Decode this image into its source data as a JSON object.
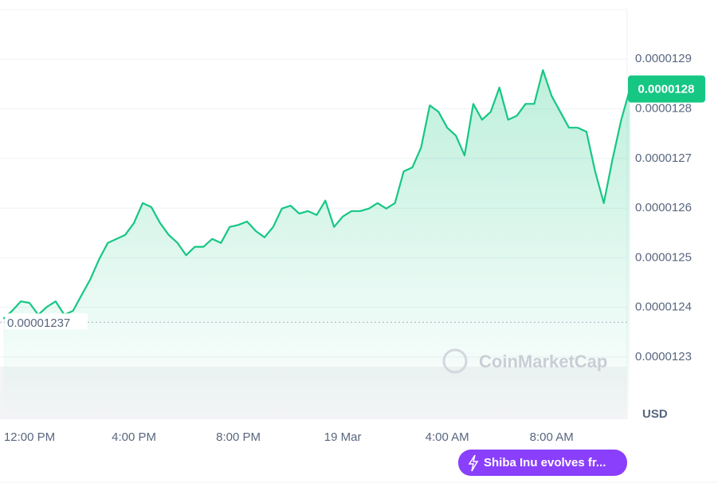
{
  "chart_data": {
    "type": "line",
    "color": "#16c784",
    "categories": [
      null,
      null,
      null,
      "12:00 PM",
      null,
      null,
      null,
      null,
      null,
      null,
      null,
      null,
      null,
      null,
      null,
      "4:00 PM",
      null,
      null,
      null,
      null,
      null,
      null,
      null,
      null,
      null,
      null,
      null,
      "8:00 PM",
      null,
      null,
      null,
      null,
      null,
      null,
      null,
      null,
      null,
      null,
      null,
      "19 Mar",
      null,
      null,
      null,
      null,
      null,
      null,
      null,
      null,
      null,
      null,
      null,
      "4:00 AM",
      null,
      null,
      null,
      null,
      null,
      null,
      null,
      null,
      null,
      null,
      null,
      "8:00 AM",
      null,
      null,
      null,
      null,
      null,
      null,
      null,
      null,
      null
    ],
    "values": [
      1.2377e-05,
      1.2393e-05,
      1.2412e-05,
      1.2409e-05,
      1.2385e-05,
      1.2401e-05,
      1.2412e-05,
      1.2385e-05,
      1.2393e-05,
      1.2425e-05,
      1.2457e-05,
      1.2497e-05,
      1.253e-05,
      1.2538e-05,
      1.2546e-05,
      1.257e-05,
      1.261e-05,
      1.2602e-05,
      1.257e-05,
      1.2546e-05,
      1.253e-05,
      1.2505e-05,
      1.2522e-05,
      1.2522e-05,
      1.2538e-05,
      1.253e-05,
      1.2562e-05,
      1.2566e-05,
      1.2573e-05,
      1.2554e-05,
      1.2541e-05,
      1.2562e-05,
      1.2599e-05,
      1.2605e-05,
      1.2589e-05,
      1.2594e-05,
      1.2586e-05,
      1.2615e-05,
      1.2562e-05,
      1.2583e-05,
      1.2594e-05,
      1.2594e-05,
      1.2599e-05,
      1.261e-05,
      1.2599e-05,
      1.261e-05,
      1.2674e-05,
      1.2682e-05,
      1.2722e-05,
      1.2807e-05,
      1.2794e-05,
      1.2762e-05,
      1.2746e-05,
      1.2706e-05,
      1.281e-05,
      1.2778e-05,
      1.2794e-05,
      1.2843e-05,
      1.2778e-05,
      1.2786e-05,
      1.281e-05,
      1.281e-05,
      1.2878e-05,
      1.2826e-05,
      1.2794e-05,
      1.2762e-05,
      1.2762e-05,
      1.2754e-05,
      1.2674e-05,
      1.261e-05,
      1.2698e-05,
      1.2778e-05,
      1.284e-05
    ],
    "value_labels": [
      null,
      null,
      null,
      null,
      null,
      null,
      null,
      null,
      null,
      null,
      null,
      null,
      null,
      null,
      null,
      null,
      null,
      null,
      null,
      null,
      null,
      null,
      null,
      null,
      null,
      null,
      null,
      null,
      null,
      null,
      null,
      null,
      null,
      null,
      null,
      null,
      null,
      null,
      null,
      null,
      null,
      null,
      null,
      null,
      null,
      null,
      null,
      null,
      null,
      null,
      null,
      null,
      null,
      null,
      null,
      null,
      null,
      null,
      null,
      null,
      null,
      null,
      null,
      null,
      null,
      null,
      null,
      null,
      null,
      null,
      null,
      null,
      "0.0000128"
    ],
    "ylim": [
      1.225e-05,
      1.3e-05
    ],
    "yticks": [
      1.23e-05,
      1.24e-05,
      1.25e-05,
      1.26e-05,
      1.27e-05,
      1.28e-05,
      1.29e-05
    ],
    "reference_line": 1.237e-05,
    "y_axis_label": "USD",
    "watermark": "CoinMarketCap",
    "annotation": "Shiba Inu evolves fr...",
    "grid": true
  }
}
